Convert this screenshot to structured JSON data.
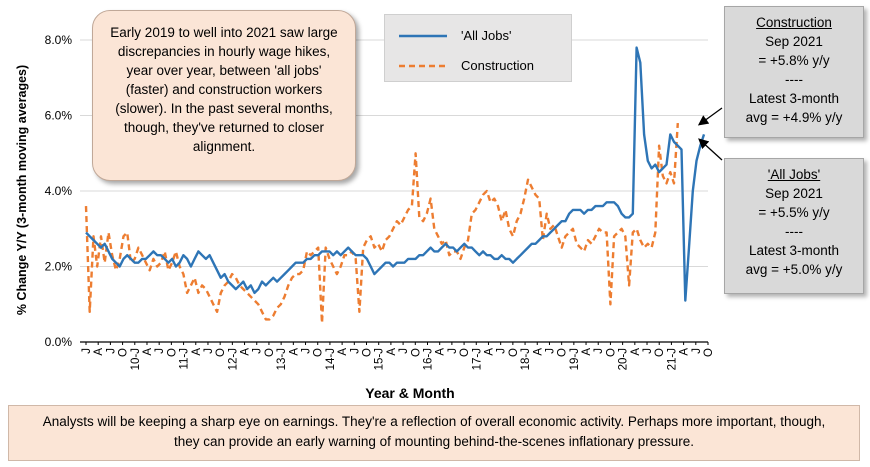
{
  "chart_data": {
    "type": "line",
    "title": "",
    "xlabel": "Year & Month",
    "ylabel": "% Change Y/Y (3-month moving averages)",
    "ylim": [
      0,
      8.5
    ],
    "y_ticks": [
      "0.0%",
      "2.0%",
      "4.0%",
      "6.0%",
      "8.0%"
    ],
    "x_tick_labels": [
      "J",
      "A",
      "J",
      "O",
      "10-J",
      "A",
      "J",
      "O",
      "11-J",
      "A",
      "J",
      "O",
      "12-J",
      "A",
      "J",
      "O",
      "13-J",
      "A",
      "J",
      "O",
      "14-J",
      "A",
      "J",
      "O",
      "15-J",
      "A",
      "J",
      "O",
      "16-J",
      "A",
      "J",
      "O",
      "17-J",
      "A",
      "J",
      "O",
      "18-J",
      "A",
      "J",
      "O",
      "19-J",
      "A",
      "J",
      "O",
      "20-J",
      "A",
      "J",
      "O",
      "21-J",
      "A",
      "J",
      "O"
    ],
    "series": [
      {
        "name": "'All Jobs'",
        "color": "#2e75b6",
        "style": "solid",
        "values": [
          2.9,
          2.8,
          2.7,
          2.6,
          2.5,
          2.6,
          2.4,
          2.2,
          2.1,
          2.0,
          2.2,
          2.3,
          2.2,
          2.1,
          2.1,
          2.2,
          2.2,
          2.3,
          2.4,
          2.3,
          2.3,
          2.2,
          2.1,
          2.2,
          2.0,
          2.1,
          2.3,
          2.2,
          2.0,
          2.2,
          2.4,
          2.3,
          2.2,
          2.3,
          2.1,
          1.9,
          1.7,
          1.8,
          1.6,
          1.5,
          1.4,
          1.5,
          1.6,
          1.4,
          1.5,
          1.3,
          1.4,
          1.6,
          1.5,
          1.6,
          1.7,
          1.6,
          1.7,
          1.8,
          1.9,
          2.0,
          2.1,
          2.1,
          2.1,
          2.2,
          2.2,
          2.3,
          2.3,
          2.4,
          2.4,
          2.4,
          2.3,
          2.4,
          2.3,
          2.4,
          2.5,
          2.4,
          2.3,
          2.3,
          2.3,
          2.2,
          2.0,
          1.8,
          1.9,
          2.0,
          2.1,
          2.1,
          2.0,
          2.1,
          2.1,
          2.1,
          2.2,
          2.2,
          2.2,
          2.3,
          2.3,
          2.4,
          2.5,
          2.4,
          2.4,
          2.5,
          2.6,
          2.5,
          2.5,
          2.4,
          2.5,
          2.6,
          2.5,
          2.5,
          2.4,
          2.3,
          2.4,
          2.3,
          2.3,
          2.2,
          2.2,
          2.3,
          2.2,
          2.2,
          2.1,
          2.2,
          2.3,
          2.4,
          2.5,
          2.6,
          2.6,
          2.7,
          2.8,
          2.8,
          2.9,
          3.0,
          3.1,
          3.2,
          3.2,
          3.4,
          3.5,
          3.5,
          3.5,
          3.4,
          3.5,
          3.5,
          3.6,
          3.6,
          3.6,
          3.7,
          3.7,
          3.7,
          3.6,
          3.4,
          3.3,
          3.3,
          3.4,
          7.8,
          7.4,
          5.5,
          4.8,
          4.6,
          4.7,
          4.5,
          4.6,
          4.7,
          5.5,
          5.3,
          5.2,
          5.1,
          1.1,
          2.5,
          4.0,
          4.8,
          5.2,
          5.5
        ]
      },
      {
        "name": "Construction",
        "color": "#ed7d31",
        "style": "dashed",
        "values": [
          3.6,
          0.8,
          2.8,
          2.0,
          2.8,
          2.1,
          2.9,
          2.3,
          1.9,
          2.2,
          2.8,
          2.9,
          2.1,
          2.2,
          2.5,
          2.3,
          2.1,
          1.9,
          2.2,
          2.0,
          2.1,
          2.4,
          1.9,
          2.1,
          2.4,
          2.0,
          1.8,
          1.3,
          1.5,
          1.7,
          1.3,
          1.5,
          1.4,
          1.2,
          1.0,
          0.8,
          1.3,
          1.5,
          1.6,
          1.8,
          1.7,
          1.5,
          1.4,
          1.3,
          1.2,
          1.1,
          1.0,
          0.8,
          0.6,
          0.6,
          0.7,
          0.9,
          1.0,
          1.2,
          1.5,
          1.7,
          1.8,
          1.8,
          1.9,
          2.4,
          2.3,
          2.4,
          2.5,
          0.5,
          2.5,
          2.2,
          2.0,
          1.8,
          2.0,
          2.3,
          2.3,
          2.4,
          2.2,
          0.8,
          2.5,
          2.7,
          2.8,
          2.5,
          2.6,
          2.4,
          2.7,
          2.8,
          3.0,
          3.2,
          3.1,
          3.3,
          3.5,
          3.6,
          5.0,
          3.3,
          3.2,
          3.4,
          3.8,
          3.0,
          2.8,
          2.6,
          2.7,
          2.3,
          2.4,
          2.4,
          2.2,
          2.5,
          2.7,
          3.4,
          3.5,
          3.7,
          3.9,
          4.0,
          3.7,
          3.8,
          3.6,
          3.2,
          3.5,
          3.0,
          2.8,
          3.2,
          3.4,
          3.8,
          4.3,
          4.1,
          3.9,
          3.8,
          2.7,
          3.4,
          3.0,
          3.1,
          2.8,
          2.5,
          2.8,
          2.9,
          3.0,
          2.6,
          2.5,
          2.4,
          2.7,
          2.6,
          2.8,
          3.0,
          2.9,
          2.9,
          1.0,
          2.8,
          2.9,
          3.0,
          2.8,
          1.5,
          2.9,
          3.0,
          2.7,
          2.5,
          2.6,
          2.5,
          2.9,
          5.2,
          4.4,
          4.2,
          4.5,
          4.2,
          5.8
        ]
      }
    ]
  },
  "legend": {
    "all_jobs": "'All Jobs'",
    "construction": "Construction"
  },
  "note_box": {
    "text": "Early 2019 to well into 2021 saw large discrepancies in hourly wage hikes, year over year, between 'all jobs' (faster) and construction workers (slower). In the past several months, though, they've returned to closer alignment."
  },
  "construction_callout": {
    "title": "Construction",
    "line1": "Sep 2021",
    "line2": "= +5.8% y/y",
    "sep": "----",
    "line3": "Latest 3-month",
    "line4": "avg = +4.9% y/y"
  },
  "alljobs_callout": {
    "title": "'All Jobs'",
    "line1": "Sep 2021",
    "line2": "= +5.5% y/y",
    "sep": "----",
    "line3": "Latest 3-month",
    "line4": "avg = +5.0% y/y"
  },
  "footer": {
    "text": "Analysts will be keeping a sharp eye on earnings. They're a reflection of overall economic activity. Perhaps more important, though, they can provide an early warning of mounting behind-the-scenes inflationary pressure."
  },
  "colors": {
    "all_jobs": "#2e75b6",
    "construction": "#ed7d31",
    "plot_bg": "#ffffff",
    "grid": "#d9d9d9",
    "axis": "#000000"
  }
}
